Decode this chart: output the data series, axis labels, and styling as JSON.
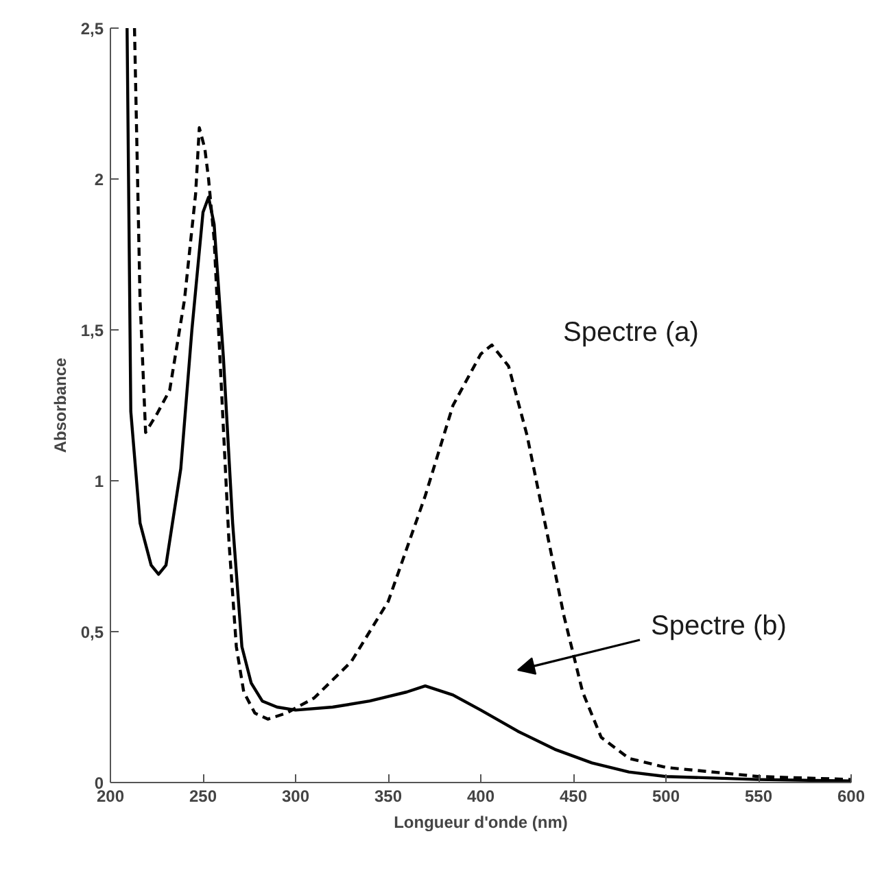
{
  "chart_data": {
    "type": "line",
    "xlabel": "Longueur d'onde (nm)",
    "ylabel": "Absorbance",
    "xlim": [
      200,
      600
    ],
    "ylim": [
      0,
      2.5
    ],
    "xticks": [
      200,
      250,
      300,
      350,
      400,
      450,
      500,
      550,
      600
    ],
    "yticks": [
      0,
      {
        "value": 0.5,
        "label": "0,5"
      },
      1,
      {
        "value": 1.5,
        "label": "1,5"
      },
      2,
      {
        "value": 2.5,
        "label": "2,5"
      }
    ],
    "grid": false,
    "marker": "none",
    "series": [
      {
        "color": "#000000",
        "line_style": "dashed",
        "x": [
          213,
          216,
          219,
          225,
          232,
          240,
          246,
          248,
          251,
          253,
          256,
          260,
          264,
          268,
          272,
          278,
          285,
          295,
          310,
          330,
          350,
          370,
          385,
          400,
          406,
          415,
          425,
          435,
          445,
          455,
          465,
          480,
          500,
          550,
          600
        ],
        "values": [
          2.5,
          1.6,
          1.16,
          1.22,
          1.3,
          1.6,
          1.95,
          2.17,
          2.1,
          2.0,
          1.8,
          1.3,
          0.8,
          0.45,
          0.3,
          0.23,
          0.21,
          0.23,
          0.28,
          0.4,
          0.6,
          0.95,
          1.25,
          1.42,
          1.45,
          1.38,
          1.15,
          0.85,
          0.55,
          0.3,
          0.15,
          0.08,
          0.05,
          0.02,
          0.01
        ]
      },
      {
        "color": "#000000",
        "line_style": "solid",
        "x": [
          209,
          211,
          216,
          222,
          226,
          230,
          238,
          244,
          250,
          253,
          256,
          261,
          266,
          271,
          276,
          282,
          290,
          300,
          320,
          340,
          360,
          370,
          385,
          400,
          420,
          440,
          460,
          480,
          500,
          550,
          600
        ],
        "values": [
          2.5,
          1.23,
          0.86,
          0.72,
          0.69,
          0.72,
          1.04,
          1.5,
          1.89,
          1.94,
          1.85,
          1.41,
          0.86,
          0.45,
          0.33,
          0.27,
          0.25,
          0.24,
          0.25,
          0.27,
          0.3,
          0.32,
          0.29,
          0.24,
          0.17,
          0.11,
          0.065,
          0.035,
          0.02,
          0.01,
          0.005
        ]
      }
    ],
    "annotations": [
      "Spectre (a)",
      "Spectre (b)"
    ]
  }
}
